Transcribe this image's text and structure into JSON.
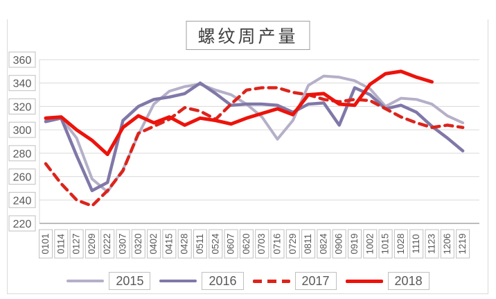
{
  "chart_data": {
    "type": "line",
    "title": "螺纹周产量",
    "xlabel": "",
    "ylabel": "",
    "ylim": [
      220,
      360
    ],
    "ytick_step": 20,
    "yticks": [
      "360",
      "340",
      "320",
      "300",
      "280",
      "260",
      "240",
      "220"
    ],
    "grid": true,
    "legend_position": "bottom",
    "categories": [
      "0101",
      "0114",
      "0127",
      "0209",
      "0222",
      "0307",
      "0320",
      "0402",
      "0415",
      "0428",
      "0511",
      "0524",
      "0607",
      "0620",
      "0703",
      "0716",
      "0729",
      "0811",
      "0824",
      "0906",
      "0919",
      "1002",
      "1015",
      "1028",
      "1110",
      "1123",
      "1206",
      "1219"
    ],
    "series": [
      {
        "name": "2015",
        "color": "#b5afc8",
        "style": "solid",
        "width": 4,
        "values": [
          308,
          310,
          293,
          258,
          247,
          266,
          296,
          322,
          333,
          337,
          339,
          334,
          330,
          322,
          311,
          292,
          308,
          338,
          346,
          345,
          342,
          335,
          320,
          327,
          326,
          322,
          312,
          306
        ]
      },
      {
        "name": "2016",
        "color": "#8078a8",
        "style": "solid",
        "width": 4.5,
        "values": [
          307,
          310,
          278,
          248,
          255,
          308,
          320,
          326,
          328,
          331,
          340,
          331,
          321,
          322,
          322,
          321,
          315,
          322,
          323,
          304,
          336,
          330,
          318,
          321,
          315,
          303,
          293,
          282
        ]
      },
      {
        "name": "2017",
        "color": "#dc241c",
        "style": "dashed",
        "width": 4.5,
        "values": [
          271,
          254,
          240,
          235,
          248,
          265,
          297,
          303,
          309,
          319,
          316,
          309,
          322,
          334,
          336,
          336,
          332,
          330,
          326,
          324,
          326,
          325,
          318,
          311,
          306,
          302,
          304,
          302
        ]
      },
      {
        "name": "2018",
        "color": "#ec130b",
        "style": "solid",
        "width": 5,
        "values": [
          310,
          311,
          300,
          291,
          279,
          302,
          312,
          306,
          311,
          304,
          310,
          308,
          305,
          310,
          314,
          318,
          313,
          330,
          331,
          322,
          321,
          339,
          348,
          350,
          345,
          341
        ]
      }
    ]
  },
  "colors": {
    "gridline": "#d9d9d9",
    "axis_line": "#a6a6a6",
    "tick_box_border": "#bfbfbf",
    "label_text": "#595959",
    "title_text": "#3f3f3f",
    "frame_border": "#d9d9d9",
    "background": "#ffffff"
  }
}
